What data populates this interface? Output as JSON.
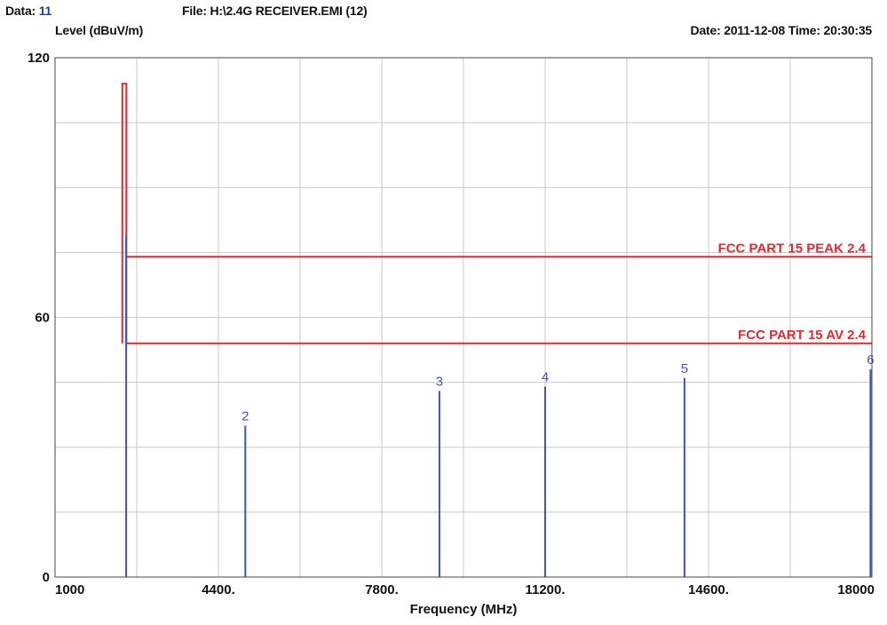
{
  "header": {
    "data_label": "Data:",
    "data_value": "11",
    "file_text": "File: H:\\2.4G RECEIVER.EMI  (12)",
    "level_label": "Level (dBuV/m)",
    "datetime_text": "Date: 2011-12-08  Time: 20:30:35"
  },
  "chart_data": {
    "type": "line",
    "title": "",
    "xlabel": "Frequency (MHz)",
    "ylabel": "Level (dBuV/m)",
    "xlim": [
      1000,
      18000
    ],
    "ylim": [
      0,
      120
    ],
    "x_ticks": [
      1000,
      4400,
      7800,
      11200,
      14600,
      18000
    ],
    "x_tick_labels": [
      "1000",
      "4400.",
      "7800.",
      "11200.",
      "14600.",
      "18000"
    ],
    "y_ticks": [
      0,
      60,
      120
    ],
    "y_tick_labels": [
      "0",
      "60",
      "120"
    ],
    "grid": true,
    "colors": {
      "limit": "#e8262d",
      "marker": "#3f56b0",
      "grid": "#c8c8c8"
    },
    "limit_lines": [
      {
        "name": "FCC PART 15 PEAK 2.4",
        "x": [
          2483.5,
          18000
        ],
        "y": [
          74,
          74
        ]
      },
      {
        "name": "FCC PART 15 AV 2.4",
        "x": [
          2483.5,
          18000
        ],
        "y": [
          54,
          54
        ]
      }
    ],
    "fundamental_trace": {
      "x": [
        2400,
        2483.5
      ],
      "y": [
        114,
        114
      ]
    },
    "markers": [
      {
        "label": "",
        "frequency": 2480,
        "level": 79
      },
      {
        "label": "2",
        "frequency": 4960,
        "level": 35
      },
      {
        "label": "3",
        "frequency": 9000,
        "level": 43
      },
      {
        "label": "4",
        "frequency": 11200,
        "level": 44
      },
      {
        "label": "5",
        "frequency": 14100,
        "level": 46
      },
      {
        "label": "6",
        "frequency": 17970,
        "level": 48
      }
    ]
  }
}
